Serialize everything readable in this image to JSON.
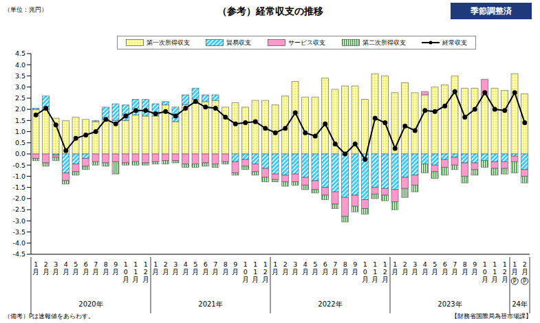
{
  "chart_data": {
    "type": "bar",
    "stacked": true,
    "title": "（参考）経常収支の推移",
    "unit_label": "（単位：兆円）",
    "badge": "季節調整済",
    "note": "（備考）Pは速報値をあらわす。",
    "source": "【財務省国際局為替市場課】",
    "grid": false,
    "legend": "top",
    "categories": [
      "1月",
      "2月",
      "3月",
      "4月",
      "5月",
      "6月",
      "7月",
      "8月",
      "9月",
      "10月",
      "11月",
      "12月",
      "1月",
      "2月",
      "3月",
      "4月",
      "5月",
      "6月",
      "7月",
      "8月",
      "9月",
      "10月",
      "11月",
      "12月",
      "1月",
      "2月",
      "3月",
      "4月",
      "5月",
      "6月",
      "7月",
      "8月",
      "9月",
      "10月",
      "11月",
      "12月",
      "1月",
      "2月",
      "3月",
      "4月",
      "5月",
      "6月",
      "7月",
      "8月",
      "9月",
      "10月",
      "11月",
      "12月",
      "1月",
      "2月"
    ],
    "category_marks": [
      null,
      null,
      null,
      null,
      null,
      null,
      null,
      null,
      null,
      null,
      null,
      null,
      null,
      null,
      null,
      null,
      null,
      null,
      null,
      null,
      null,
      null,
      null,
      null,
      null,
      null,
      null,
      null,
      null,
      null,
      null,
      null,
      null,
      null,
      null,
      null,
      null,
      null,
      null,
      null,
      null,
      null,
      null,
      null,
      null,
      null,
      null,
      null,
      "P",
      "P"
    ],
    "year_groups": [
      {
        "label": "2020年",
        "start": 0,
        "end": 11
      },
      {
        "label": "2021年",
        "start": 12,
        "end": 23
      },
      {
        "label": "2022年",
        "start": 24,
        "end": 35
      },
      {
        "label": "2023年",
        "start": 36,
        "end": 47
      },
      {
        "label": "24年",
        "start": 48,
        "end": 49
      }
    ],
    "ylim": [
      -4.5,
      4.5
    ],
    "yticks": [
      4.5,
      {
        "value": 4,
        "label": "4.0"
      },
      3.5,
      {
        "value": 3,
        "label": "3.0"
      },
      2.5,
      {
        "value": 2,
        "label": "2.0"
      },
      1.5,
      {
        "value": 1,
        "label": "1.0"
      },
      0.5,
      {
        "value": 0,
        "label": "0.0"
      },
      -0.5,
      {
        "value": -1,
        "label": "-1.0"
      },
      -1.5,
      {
        "value": -2,
        "label": "-2.0"
      },
      -2.5,
      {
        "value": -3,
        "label": "-3.0"
      },
      -3.5,
      {
        "value": -4,
        "label": "-4.0"
      },
      -4.5
    ],
    "series": [
      {
        "name": "第一次所得収支",
        "type": "bar",
        "color": "#ffff99",
        "values": [
          2.0,
          2.0,
          1.6,
          1.5,
          1.65,
          1.55,
          1.45,
          1.55,
          1.5,
          1.5,
          1.75,
          1.7,
          1.7,
          2.2,
          1.45,
          2.2,
          2.45,
          2.35,
          2.4,
          2.1,
          2.3,
          2.1,
          2.4,
          2.4,
          2.2,
          2.6,
          3.25,
          2.55,
          2.55,
          3.4,
          2.9,
          3.05,
          3.05,
          2.45,
          3.6,
          3.5,
          2.75,
          3.2,
          2.75,
          2.65,
          3.0,
          3.1,
          3.5,
          2.95,
          2.95,
          2.65,
          2.95,
          2.85,
          3.6,
          2.7
        ]
      },
      {
        "name": "貿易収支",
        "type": "bar",
        "color": "#33ccff",
        "values": [
          0.05,
          0.6,
          -0.05,
          -0.85,
          -0.45,
          -0.2,
          0.05,
          0.55,
          0.75,
          0.7,
          0.7,
          0.75,
          0.55,
          0.15,
          0.65,
          0.45,
          0.5,
          0.3,
          0.25,
          0,
          -0.35,
          -0.25,
          -0.45,
          -0.65,
          -0.9,
          -0.95,
          -0.9,
          -1.05,
          -1.2,
          -1.5,
          -1.7,
          -1.95,
          -1.85,
          -2.05,
          -1.5,
          -1.55,
          -1.6,
          -1.05,
          -0.95,
          -0.45,
          -0.5,
          -0.25,
          -0.15,
          -0.4,
          -0.4,
          -0.3,
          -0.35,
          -0.35,
          -0.1,
          -0.7
        ]
      },
      {
        "name": "サービス収支",
        "type": "bar",
        "color": "#ff99cc",
        "values": [
          -0.2,
          -0.4,
          -0.1,
          -0.35,
          -0.35,
          -0.35,
          -0.35,
          -0.4,
          -0.35,
          -0.4,
          -0.35,
          -0.4,
          -0.35,
          -0.3,
          -0.3,
          -0.45,
          -0.45,
          -0.4,
          -0.45,
          -0.35,
          -0.5,
          -0.3,
          -0.35,
          -0.4,
          -0.25,
          -0.3,
          -0.35,
          -0.35,
          -0.4,
          -0.35,
          -0.55,
          -0.85,
          -0.5,
          -0.4,
          -0.3,
          -0.3,
          -0.55,
          -0.5,
          -0.45,
          0.15,
          -0.3,
          -0.35,
          -0.35,
          -0.6,
          -0.3,
          0.7,
          -0.3,
          -0.3,
          -0.25,
          -0.3
        ]
      },
      {
        "name": "第二次所得収支",
        "type": "bar",
        "color": "#339933",
        "values": [
          -0.1,
          -0.15,
          -0.15,
          -0.15,
          -0.15,
          -0.15,
          -0.15,
          -0.15,
          -0.55,
          -0.1,
          -0.15,
          -0.1,
          -0.1,
          -0.15,
          -0.1,
          -0.15,
          -0.15,
          -0.15,
          -0.15,
          -0.1,
          -0.1,
          -0.15,
          -0.15,
          -0.2,
          -0.1,
          -0.2,
          -0.15,
          -0.2,
          -0.15,
          -0.2,
          -0.2,
          -0.25,
          -0.25,
          -0.25,
          -0.2,
          -0.25,
          -0.35,
          -0.4,
          -0.3,
          -0.4,
          -0.3,
          -0.35,
          -0.2,
          -0.3,
          -0.25,
          -0.3,
          -0.3,
          -0.25,
          -0.5,
          -0.3
        ]
      },
      {
        "name": "経常収支",
        "type": "line",
        "color": "#000000",
        "marker": "circle",
        "values": [
          1.75,
          2.05,
          1.3,
          0.15,
          0.7,
          0.85,
          1.0,
          1.55,
          1.35,
          1.7,
          1.95,
          1.95,
          1.8,
          1.9,
          1.7,
          2.05,
          2.35,
          2.1,
          2.05,
          1.65,
          1.35,
          1.4,
          1.45,
          1.15,
          0.95,
          1.15,
          1.85,
          0.95,
          0.8,
          1.35,
          0.45,
          0.0,
          0.45,
          -0.25,
          1.6,
          1.4,
          0.25,
          1.25,
          1.05,
          1.95,
          1.9,
          2.15,
          2.8,
          1.65,
          2.0,
          2.75,
          2.0,
          1.95,
          2.75,
          1.4
        ]
      }
    ]
  }
}
